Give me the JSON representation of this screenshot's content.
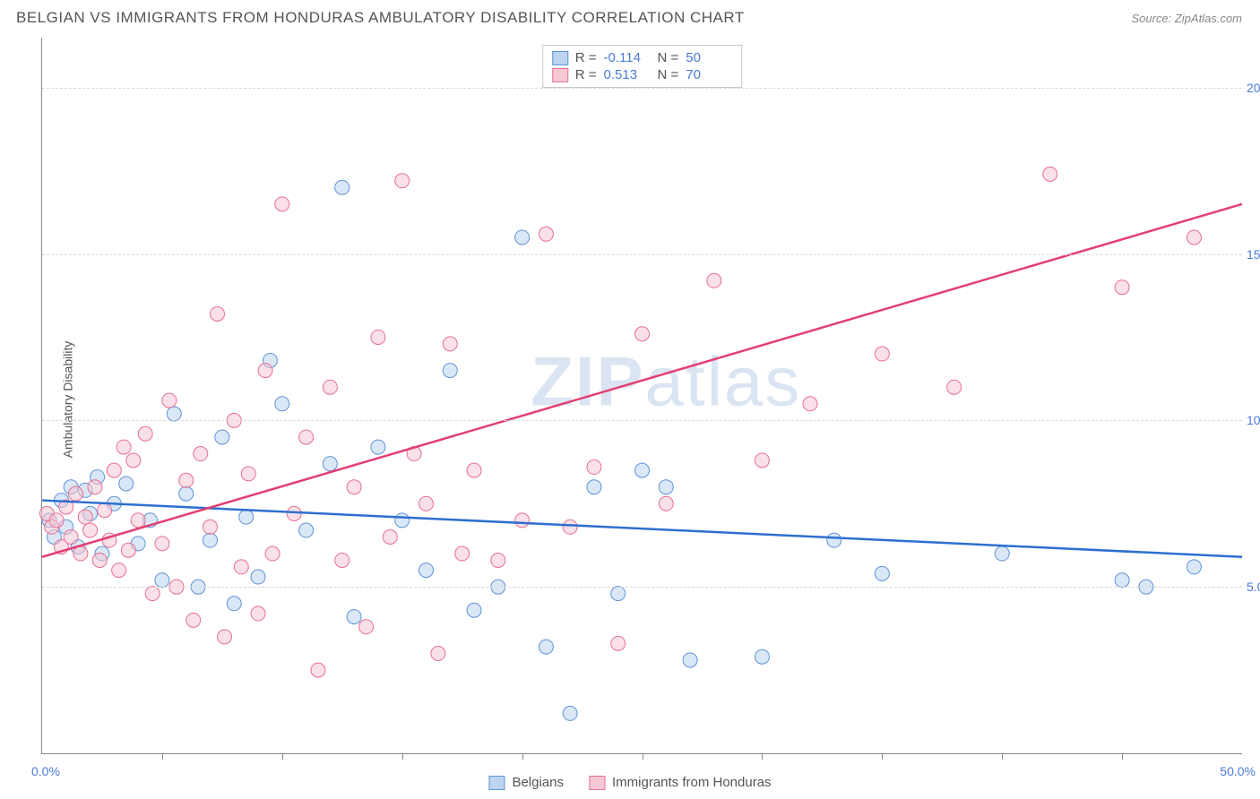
{
  "header": {
    "title": "BELGIAN VS IMMIGRANTS FROM HONDURAS AMBULATORY DISABILITY CORRELATION CHART",
    "source": "Source: ZipAtlas.com"
  },
  "watermark": {
    "prefix": "ZIP",
    "suffix": "atlas"
  },
  "chart": {
    "type": "scatter",
    "ylabel": "Ambulatory Disability",
    "background_color": "#ffffff",
    "grid_color": "#d8d8d8",
    "axis_color": "#888888",
    "label_color": "#4a7bd8",
    "text_color": "#555555",
    "xlim": [
      0,
      50
    ],
    "ylim": [
      0,
      21.5
    ],
    "x_origin_label": "0.0%",
    "x_max_label": "50.0%",
    "xticks": [
      5,
      10,
      15,
      20,
      25,
      30,
      35,
      40,
      45
    ],
    "yticks": [
      {
        "v": 5,
        "label": "5.0%"
      },
      {
        "v": 10,
        "label": "10.0%"
      },
      {
        "v": 15,
        "label": "15.0%"
      },
      {
        "v": 20,
        "label": "20.0%"
      }
    ],
    "marker_radius": 8,
    "marker_opacity": 0.55,
    "series": [
      {
        "name": "Belgians",
        "fill": "#bcd4ef",
        "stroke": "#5e94d6",
        "line_color": "#2e6fd0",
        "line_width": 2.5,
        "R": "-0.114",
        "N": "50",
        "trend": {
          "x1": 0,
          "y1": 7.6,
          "x2": 50,
          "y2": 5.9
        },
        "points": [
          [
            0.3,
            7.0
          ],
          [
            0.5,
            6.5
          ],
          [
            0.8,
            7.6
          ],
          [
            1.0,
            6.8
          ],
          [
            1.2,
            8.0
          ],
          [
            1.5,
            6.2
          ],
          [
            1.8,
            7.9
          ],
          [
            2.0,
            7.2
          ],
          [
            2.3,
            8.3
          ],
          [
            2.5,
            6.0
          ],
          [
            3.0,
            7.5
          ],
          [
            3.5,
            8.1
          ],
          [
            4.0,
            6.3
          ],
          [
            4.5,
            7.0
          ],
          [
            5.0,
            5.2
          ],
          [
            5.5,
            10.2
          ],
          [
            6.0,
            7.8
          ],
          [
            6.5,
            5.0
          ],
          [
            7.0,
            6.4
          ],
          [
            7.5,
            9.5
          ],
          [
            8.0,
            4.5
          ],
          [
            8.5,
            7.1
          ],
          [
            9.0,
            5.3
          ],
          [
            9.5,
            11.8
          ],
          [
            10.0,
            10.5
          ],
          [
            11.0,
            6.7
          ],
          [
            12.0,
            8.7
          ],
          [
            12.5,
            17.0
          ],
          [
            13.0,
            4.1
          ],
          [
            14.0,
            9.2
          ],
          [
            15.0,
            7.0
          ],
          [
            16.0,
            5.5
          ],
          [
            17.0,
            11.5
          ],
          [
            18.0,
            4.3
          ],
          [
            19.0,
            5.0
          ],
          [
            20.0,
            15.5
          ],
          [
            21.0,
            3.2
          ],
          [
            22.0,
            1.2
          ],
          [
            23.0,
            8.0
          ],
          [
            24.0,
            4.8
          ],
          [
            25.0,
            8.5
          ],
          [
            26.0,
            8.0
          ],
          [
            27.0,
            2.8
          ],
          [
            30.0,
            2.9
          ],
          [
            33.0,
            6.4
          ],
          [
            35.0,
            5.4
          ],
          [
            40.0,
            6.0
          ],
          [
            45.0,
            5.2
          ],
          [
            46.0,
            5.0
          ],
          [
            48.0,
            5.6
          ]
        ]
      },
      {
        "name": "Immigrants from Honduras",
        "fill": "#f6c7d4",
        "stroke": "#e66f94",
        "line_color": "#e33f72",
        "line_width": 2.5,
        "R": "0.513",
        "N": "70",
        "trend": {
          "x1": 0,
          "y1": 5.9,
          "x2": 50,
          "y2": 16.5
        },
        "points": [
          [
            0.2,
            7.2
          ],
          [
            0.4,
            6.8
          ],
          [
            0.6,
            7.0
          ],
          [
            0.8,
            6.2
          ],
          [
            1.0,
            7.4
          ],
          [
            1.2,
            6.5
          ],
          [
            1.4,
            7.8
          ],
          [
            1.6,
            6.0
          ],
          [
            1.8,
            7.1
          ],
          [
            2.0,
            6.7
          ],
          [
            2.2,
            8.0
          ],
          [
            2.4,
            5.8
          ],
          [
            2.6,
            7.3
          ],
          [
            2.8,
            6.4
          ],
          [
            3.0,
            8.5
          ],
          [
            3.2,
            5.5
          ],
          [
            3.4,
            9.2
          ],
          [
            3.6,
            6.1
          ],
          [
            3.8,
            8.8
          ],
          [
            4.0,
            7.0
          ],
          [
            4.3,
            9.6
          ],
          [
            4.6,
            4.8
          ],
          [
            5.0,
            6.3
          ],
          [
            5.3,
            10.6
          ],
          [
            5.6,
            5.0
          ],
          [
            6.0,
            8.2
          ],
          [
            6.3,
            4.0
          ],
          [
            6.6,
            9.0
          ],
          [
            7.0,
            6.8
          ],
          [
            7.3,
            13.2
          ],
          [
            7.6,
            3.5
          ],
          [
            8.0,
            10.0
          ],
          [
            8.3,
            5.6
          ],
          [
            8.6,
            8.4
          ],
          [
            9.0,
            4.2
          ],
          [
            9.3,
            11.5
          ],
          [
            9.6,
            6.0
          ],
          [
            10.0,
            16.5
          ],
          [
            10.5,
            7.2
          ],
          [
            11.0,
            9.5
          ],
          [
            11.5,
            2.5
          ],
          [
            12.0,
            11.0
          ],
          [
            12.5,
            5.8
          ],
          [
            13.0,
            8.0
          ],
          [
            13.5,
            3.8
          ],
          [
            14.0,
            12.5
          ],
          [
            14.5,
            6.5
          ],
          [
            15.0,
            17.2
          ],
          [
            15.5,
            9.0
          ],
          [
            16.0,
            7.5
          ],
          [
            16.5,
            3.0
          ],
          [
            17.0,
            12.3
          ],
          [
            17.5,
            6.0
          ],
          [
            18.0,
            8.5
          ],
          [
            19.0,
            5.8
          ],
          [
            20.0,
            7.0
          ],
          [
            21.0,
            15.6
          ],
          [
            22.0,
            6.8
          ],
          [
            23.0,
            8.6
          ],
          [
            24.0,
            3.3
          ],
          [
            25.0,
            12.6
          ],
          [
            26.0,
            7.5
          ],
          [
            28.0,
            14.2
          ],
          [
            30.0,
            8.8
          ],
          [
            32.0,
            10.5
          ],
          [
            35.0,
            12.0
          ],
          [
            38.0,
            11.0
          ],
          [
            42.0,
            17.4
          ],
          [
            45.0,
            14.0
          ],
          [
            48.0,
            15.5
          ]
        ]
      }
    ]
  },
  "stats_box": {
    "R_label": "R =",
    "N_label": "N ="
  },
  "legend_bottom": {
    "s1": "Belgians",
    "s2": "Immigrants from Honduras"
  }
}
